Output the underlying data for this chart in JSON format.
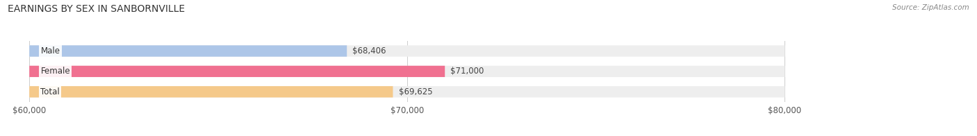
{
  "title": "EARNINGS BY SEX IN SANBORNVILLE",
  "source": "Source: ZipAtlas.com",
  "categories": [
    "Male",
    "Female",
    "Total"
  ],
  "values": [
    68406,
    71000,
    69625
  ],
  "bar_colors": [
    "#adc6e8",
    "#f07090",
    "#f5c98a"
  ],
  "bar_bg_color": "#eeeeee",
  "xlim": [
    60000,
    80000
  ],
  "xticks": [
    60000,
    70000,
    80000
  ],
  "xtick_labels": [
    "$60,000",
    "$70,000",
    "$80,000"
  ],
  "value_labels": [
    "$68,406",
    "$71,000",
    "$69,625"
  ],
  "title_fontsize": 10,
  "bar_height": 0.55,
  "figsize": [
    14.06,
    1.96
  ],
  "dpi": 100
}
